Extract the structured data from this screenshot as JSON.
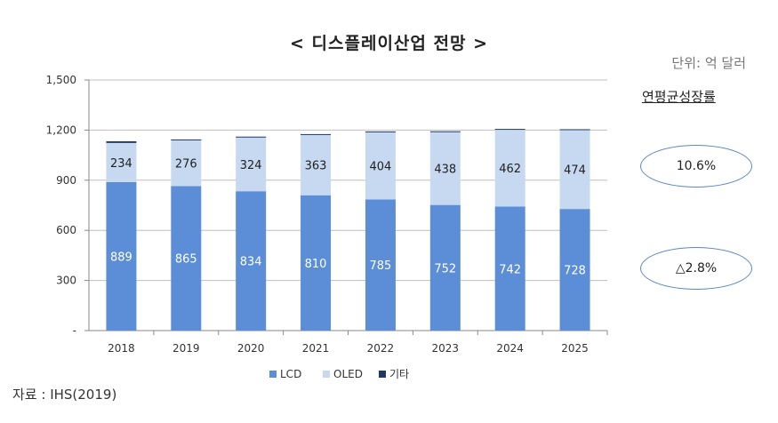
{
  "title": "< 디스플레이산업 전망 >",
  "unit": "단위: 억 달러",
  "cagr_header": "연평균성장률",
  "annotations": {
    "oled_cagr": "10.6%",
    "lcd_cagr": "△2.8%"
  },
  "source": "자료 : IHS(2019)",
  "colors": {
    "lcd": "#5b8ed6",
    "oled": "#c6d9f1",
    "other": "#1f3864"
  },
  "chart_data": {
    "type": "bar",
    "stacked": true,
    "categories": [
      "2018",
      "2019",
      "2020",
      "2021",
      "2022",
      "2023",
      "2024",
      "2025"
    ],
    "series": [
      {
        "name": "LCD",
        "values": [
          889,
          865,
          834,
          810,
          785,
          752,
          742,
          728
        ]
      },
      {
        "name": "OLED",
        "values": [
          234,
          276,
          324,
          363,
          404,
          438,
          462,
          474
        ]
      },
      {
        "name": "기타",
        "values": [
          10,
          3,
          3,
          3,
          3,
          3,
          3,
          3
        ]
      }
    ],
    "ylim": [
      0,
      1500
    ],
    "yticks": [
      0,
      300,
      600,
      900,
      1200,
      1500
    ],
    "ytick_labels": [
      "-",
      "300",
      "600",
      "900",
      "1,200",
      "1,500"
    ],
    "legend": "bottom",
    "grid": true,
    "xlabel": "",
    "ylabel": ""
  }
}
